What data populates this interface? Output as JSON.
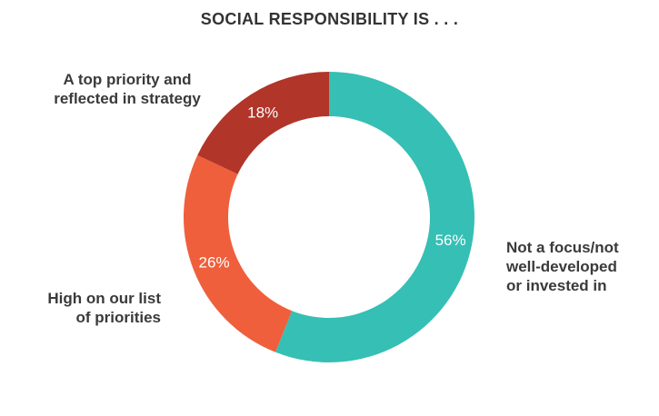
{
  "chart_data": {
    "type": "pie",
    "title": "SOCIAL RESPONSIBILITY IS . . .",
    "categories": [
      "Not a focus/not well-developed or invested in",
      "High on our list of priorities",
      "A top priority and reflected in strategy"
    ],
    "values": [
      56,
      26,
      18
    ],
    "value_labels": [
      "56%",
      "26%",
      "18%"
    ],
    "colors": [
      "#36bfb4",
      "#ef5f3c",
      "#b13529"
    ],
    "style": "donut",
    "legend": "none"
  },
  "labels": {
    "top": [
      "A top priority and",
      "reflected in strategy"
    ],
    "left": [
      "High on our list",
      "of priorities"
    ],
    "right": [
      "Not a focus/not",
      "well-developed",
      "or invested in"
    ]
  }
}
